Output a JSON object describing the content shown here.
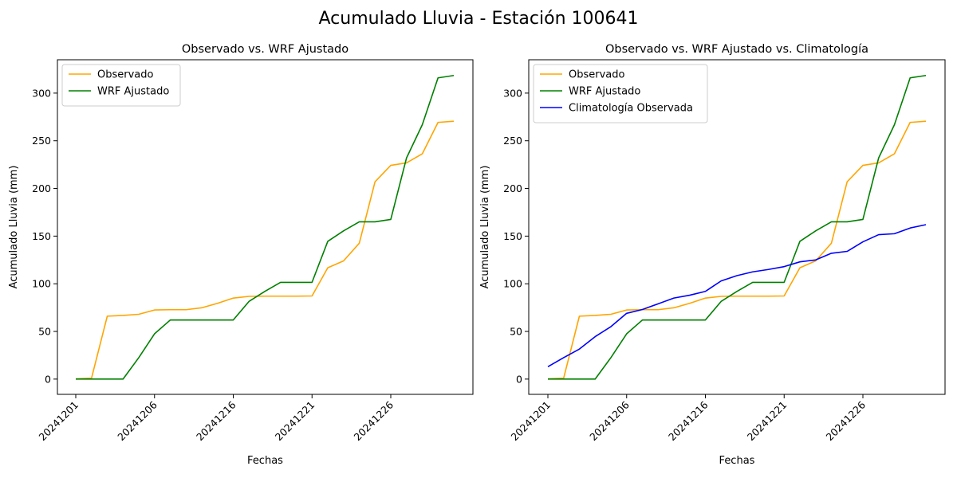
{
  "figure": {
    "suptitle": "Acumulado Lluvia - Estación 100641"
  },
  "chart_data": [
    {
      "type": "line",
      "title": "Observado vs. WRF Ajustado",
      "xlabel": "Fechas",
      "ylabel": "Acumulado Lluvia (mm)",
      "ylim": [
        -16,
        335
      ],
      "yticks": [
        0,
        50,
        100,
        150,
        200,
        250,
        300
      ],
      "xtick_labels": [
        "20241201",
        "20241206",
        "20241216",
        "20241221",
        "20241226"
      ],
      "grid": false,
      "legend": "upper-left",
      "series": [
        {
          "name": "Observado",
          "color": "#ffa500",
          "values": [
            0.3,
            1.0,
            66.0,
            66.8,
            68.0,
            72.5,
            72.8,
            72.8,
            74.8,
            79.5,
            85.0,
            86.8,
            87.0,
            87.0,
            87.0,
            87.2,
            116.8,
            124.0,
            142.5,
            207.0,
            224.2,
            226.8,
            236.3,
            269.3,
            270.5
          ]
        },
        {
          "name": "WRF Ajustado",
          "color": "#008000",
          "values": [
            0.0,
            0.0,
            0.0,
            0.0,
            22.5,
            47.5,
            62.0,
            62.0,
            62.0,
            62.0,
            62.0,
            81.5,
            92.0,
            101.5,
            101.5,
            101.5,
            144.5,
            155.5,
            165.0,
            165.0,
            167.5,
            232.0,
            266.8,
            316.0,
            318.5
          ]
        }
      ]
    },
    {
      "type": "line",
      "title": "Observado vs. WRF Ajustado vs. Climatología",
      "xlabel": "Fechas",
      "ylabel": "Acumulado Lluvia (mm)",
      "ylim": [
        -16,
        335
      ],
      "yticks": [
        0,
        50,
        100,
        150,
        200,
        250,
        300
      ],
      "xtick_labels": [
        "20241201",
        "20241206",
        "20241216",
        "20241221",
        "20241226"
      ],
      "grid": false,
      "legend": "upper-left",
      "series": [
        {
          "name": "Observado",
          "color": "#ffa500",
          "values": [
            0.3,
            1.0,
            66.0,
            66.8,
            68.0,
            72.5,
            72.8,
            72.8,
            74.8,
            79.5,
            85.0,
            86.8,
            87.0,
            87.0,
            87.0,
            87.2,
            116.8,
            124.0,
            142.5,
            207.0,
            224.2,
            226.8,
            236.3,
            269.3,
            270.5
          ]
        },
        {
          "name": "WRF Ajustado",
          "color": "#008000",
          "values": [
            0.0,
            0.0,
            0.0,
            0.0,
            22.5,
            47.5,
            62.0,
            62.0,
            62.0,
            62.0,
            62.0,
            81.5,
            92.0,
            101.5,
            101.5,
            101.5,
            144.5,
            155.5,
            165.0,
            165.0,
            167.5,
            232.0,
            266.8,
            316.0,
            318.5
          ]
        },
        {
          "name": "Climatología Observada",
          "color": "#0000ff",
          "values": [
            13.0,
            22.5,
            31.5,
            44.5,
            55.0,
            69.0,
            73.0,
            79.0,
            85.0,
            88.0,
            92.0,
            103.0,
            108.5,
            112.5,
            115.0,
            118.0,
            123.0,
            125.0,
            132.0,
            134.0,
            144.0,
            151.5,
            152.5,
            158.5,
            162.0
          ]
        }
      ]
    }
  ]
}
